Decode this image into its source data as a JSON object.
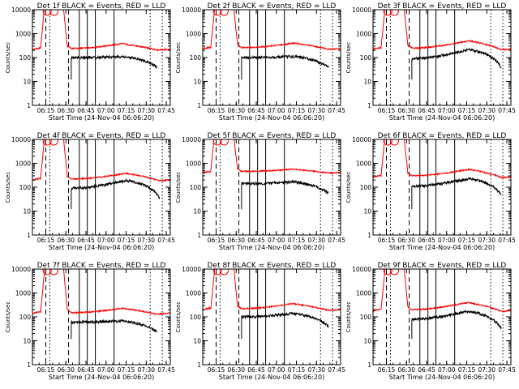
{
  "chart_data": {
    "type": "line",
    "y_scale": "log",
    "ylim": [
      1,
      10000
    ],
    "y_ticks": [
      1,
      10,
      100,
      1000,
      10000
    ],
    "y_tick_labels": [
      "1",
      "10",
      "100",
      "1000",
      "10000"
    ],
    "xlim": [
      "06:05",
      "07:48"
    ],
    "x_ticks": [
      "06:15",
      "06:30",
      "06:45",
      "07:00",
      "07:15",
      "07:30",
      "07:45"
    ],
    "ylabel": "Counts/sec",
    "xlabel": "Start Time (24-Nov-04 06:06:20)",
    "series_colors": {
      "events": "#000000",
      "lld": "#ff0000"
    },
    "series_labels": {
      "events": "BLACK = Events",
      "lld": "RED = LLD"
    },
    "grid": false,
    "panels": [
      {
        "title": "Det 1f BLACK = Events, RED = LLD",
        "lld_base": 240,
        "ev_base": 100,
        "ev_peak": 110,
        "lld_peak": 380,
        "peak_time": "07:12",
        "end_time": "07:38",
        "solid_markers": [
          "06:40",
          "06:46",
          "06:52",
          "07:06"
        ],
        "dashed_markers": [
          "06:15",
          "06:32"
        ],
        "dotted_markers": [
          "06:18",
          "07:33",
          "07:42"
        ]
      },
      {
        "title": "Det 2f BLACK = Events, RED = LLD",
        "lld_base": 260,
        "ev_base": 100,
        "ev_peak": 110,
        "lld_peak": 400,
        "peak_time": "07:13",
        "end_time": "07:39",
        "solid_markers": [
          "06:40",
          "06:46",
          "06:52",
          "07:06"
        ],
        "dashed_markers": [
          "06:15",
          "06:32"
        ],
        "dotted_markers": [
          "06:18",
          "07:33",
          "07:42"
        ]
      },
      {
        "title": "Det 3f BLACK = Events, RED = LLD",
        "lld_base": 250,
        "ev_base": 90,
        "ev_peak": 210,
        "lld_peak": 500,
        "peak_time": "07:17",
        "end_time": "07:41",
        "solid_markers": [
          "06:40",
          "06:46",
          "06:52",
          "07:06"
        ],
        "dashed_markers": [
          "06:15",
          "06:32"
        ],
        "dotted_markers": [
          "06:18",
          "07:33",
          "07:42"
        ]
      },
      {
        "title": "Det 4f BLACK = Events, RED = LLD",
        "lld_base": 220,
        "ev_base": 90,
        "ev_peak": 190,
        "lld_peak": 380,
        "peak_time": "07:15",
        "end_time": "07:40",
        "solid_markers": [
          "06:40",
          "06:46",
          "06:52",
          "07:06"
        ],
        "dashed_markers": [
          "06:15",
          "06:32"
        ],
        "dotted_markers": [
          "06:18",
          "07:33",
          "07:42"
        ]
      },
      {
        "title": "Det 5f BLACK = Events, RED = LLD",
        "lld_base": 460,
        "ev_base": 140,
        "ev_peak": 165,
        "lld_peak": 570,
        "peak_time": "07:13",
        "end_time": "07:39",
        "solid_markers": [
          "06:40",
          "06:46",
          "06:52",
          "07:06"
        ],
        "dashed_markers": [
          "06:15",
          "06:32"
        ],
        "dotted_markers": [
          "06:18",
          "07:33",
          "07:42"
        ]
      },
      {
        "title": "Det 6f BLACK = Events, RED = LLD",
        "lld_base": 300,
        "ev_base": 110,
        "ev_peak": 230,
        "lld_peak": 560,
        "peak_time": "07:17",
        "end_time": "07:41",
        "solid_markers": [
          "06:40",
          "06:46",
          "06:52",
          "07:06"
        ],
        "dashed_markers": [
          "06:15",
          "06:32"
        ],
        "dotted_markers": [
          "06:18",
          "07:33",
          "07:42"
        ]
      },
      {
        "title": "Det 7f BLACK = Events, RED = LLD",
        "lld_base": 150,
        "ev_base": 60,
        "ev_peak": 68,
        "lld_peak": 230,
        "peak_time": "07:12",
        "end_time": "07:38",
        "solid_markers": [
          "06:40",
          "06:46",
          "06:52",
          "07:06"
        ],
        "dashed_markers": [
          "06:15",
          "06:32"
        ],
        "dotted_markers": [
          "06:18",
          "07:33",
          "07:42"
        ]
      },
      {
        "title": "Det 8f BLACK = Events, RED = LLD",
        "lld_base": 220,
        "ev_base": 100,
        "ev_peak": 140,
        "lld_peak": 360,
        "peak_time": "07:12",
        "end_time": "07:39",
        "solid_markers": [
          "06:40",
          "06:46",
          "06:52",
          "07:06"
        ],
        "dashed_markers": [
          "06:15",
          "06:32"
        ],
        "dotted_markers": [
          "06:18",
          "07:33",
          "07:42"
        ]
      },
      {
        "title": "Det 9f BLACK = Events, RED = LLD",
        "lld_base": 200,
        "ev_base": 80,
        "ev_peak": 170,
        "lld_peak": 400,
        "peak_time": "07:16",
        "end_time": "07:41",
        "solid_markers": [
          "06:40",
          "06:46",
          "06:52",
          "07:06"
        ],
        "dashed_markers": [
          "06:15",
          "06:32"
        ],
        "dotted_markers": [
          "06:18",
          "07:33",
          "07:42"
        ]
      }
    ]
  }
}
